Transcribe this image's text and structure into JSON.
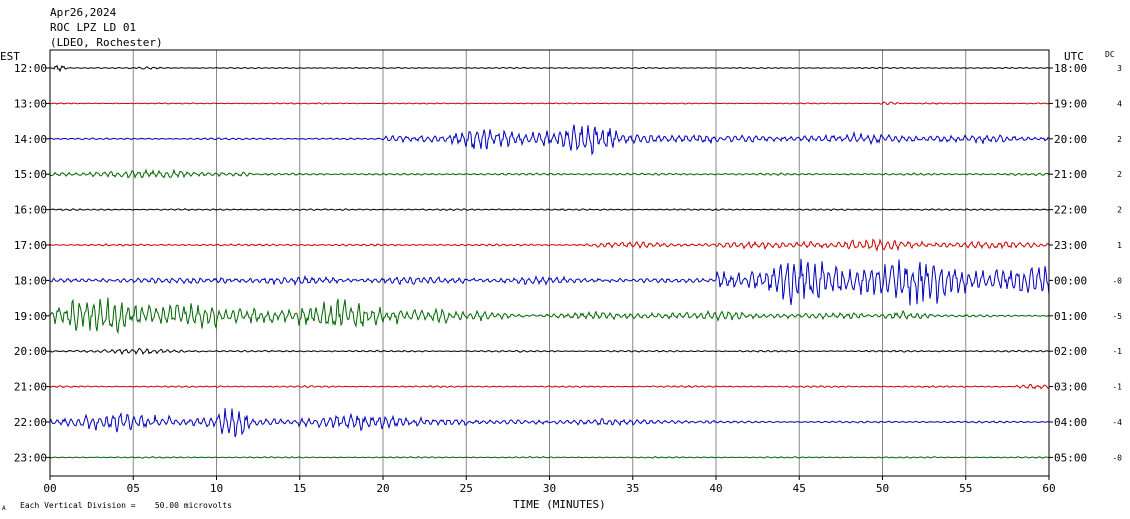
{
  "header": {
    "date": "Apr26,2024",
    "station": "ROC LPZ LD 01",
    "network": "(LDEO, Rochester)"
  },
  "labels": {
    "left_tz": "EST",
    "right_tz": "UTC",
    "dc": "DC",
    "footer_scale": "Each Vertical Division =    50.00 microvolts",
    "footer_mark": "A"
  },
  "colors": {
    "black": "#000000",
    "red": "#cc0000",
    "blue": "#0000bb",
    "green": "#006600",
    "grid": "#888888"
  },
  "chart_data": {
    "type": "line",
    "title": "",
    "xlabel": "TIME (MINUTES)",
    "ylabel": "",
    "xlim": [
      0,
      60
    ],
    "x_ticks": [
      "00",
      "05",
      "10",
      "15",
      "20",
      "25",
      "30",
      "35",
      "40",
      "45",
      "50",
      "55",
      "60"
    ],
    "grid": true,
    "traces": [
      {
        "est": "12:00",
        "utc": "18:00",
        "dc": "3",
        "color": "black",
        "base_amp": 0.7,
        "events": [
          {
            "start": 0.2,
            "end": 1.0,
            "amp": 8
          },
          {
            "start": 5,
            "end": 7,
            "amp": 1.8
          }
        ]
      },
      {
        "est": "13:00",
        "utc": "19:00",
        "dc": "4",
        "color": "red",
        "base_amp": 0.7,
        "events": [
          {
            "start": 49.8,
            "end": 51.0,
            "amp": 3
          }
        ]
      },
      {
        "est": "14:00",
        "utc": "20:00",
        "dc": "2",
        "color": "blue",
        "base_amp": 1.0,
        "events": [
          {
            "start": 20,
            "end": 24,
            "amp": 7
          },
          {
            "start": 24,
            "end": 29,
            "amp": 13
          },
          {
            "start": 29,
            "end": 34,
            "amp": 22
          },
          {
            "start": 34,
            "end": 40,
            "amp": 9
          },
          {
            "start": 40,
            "end": 60,
            "amp": 6
          }
        ]
      },
      {
        "est": "15:00",
        "utc": "21:00",
        "dc": "2",
        "color": "green",
        "base_amp": 1.3,
        "events": [
          {
            "start": 0,
            "end": 12,
            "amp": 5
          }
        ]
      },
      {
        "est": "16:00",
        "utc": "22:00",
        "dc": "2",
        "color": "black",
        "base_amp": 1.0,
        "events": []
      },
      {
        "est": "17:00",
        "utc": "23:00",
        "dc": "1",
        "color": "red",
        "base_amp": 1.2,
        "events": [
          {
            "start": 32,
            "end": 40,
            "amp": 4
          },
          {
            "start": 40,
            "end": 60,
            "amp": 6
          }
        ]
      },
      {
        "est": "18:00",
        "utc": "00:00",
        "dc": "-0",
        "color": "blue",
        "base_amp": 2.0,
        "events": [
          {
            "start": 0,
            "end": 40,
            "amp": 5
          },
          {
            "start": 40,
            "end": 60,
            "amp": 28
          }
        ]
      },
      {
        "est": "19:00",
        "utc": "01:00",
        "dc": "-5",
        "color": "green",
        "base_amp": 1.5,
        "events": [
          {
            "start": 0,
            "end": 10,
            "amp": 24
          },
          {
            "start": 10,
            "end": 24,
            "amp": 16
          },
          {
            "start": 24,
            "end": 28,
            "amp": 6
          },
          {
            "start": 28,
            "end": 50,
            "amp": 5
          },
          {
            "start": 50,
            "end": 53,
            "amp": 8
          }
        ]
      },
      {
        "est": "20:00",
        "utc": "02:00",
        "dc": "-1",
        "color": "black",
        "base_amp": 1.0,
        "events": [
          {
            "start": 0,
            "end": 10,
            "amp": 3
          }
        ]
      },
      {
        "est": "21:00",
        "utc": "03:00",
        "dc": "-1",
        "color": "red",
        "base_amp": 1.0,
        "events": [
          {
            "start": 58,
            "end": 60,
            "amp": 4
          }
        ]
      },
      {
        "est": "22:00",
        "utc": "04:00",
        "dc": "-4",
        "color": "blue",
        "base_amp": 1.2,
        "events": [
          {
            "start": 0,
            "end": 10,
            "amp": 11
          },
          {
            "start": 10,
            "end": 12,
            "amp": 20
          },
          {
            "start": 12,
            "end": 25,
            "amp": 9
          },
          {
            "start": 25,
            "end": 40,
            "amp": 4
          }
        ]
      },
      {
        "est": "23:00",
        "utc": "05:00",
        "dc": "-0",
        "color": "green",
        "base_amp": 0.8,
        "events": []
      }
    ]
  }
}
